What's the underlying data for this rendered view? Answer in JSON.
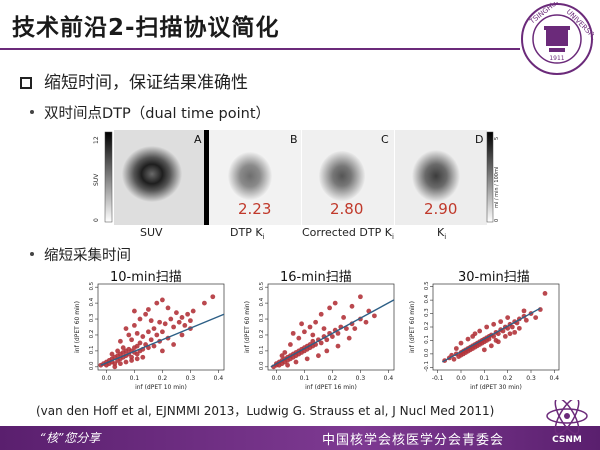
{
  "header": {
    "title": "技术前沿2-扫描协议简化",
    "logo": {
      "icon": "tsinghua-university-seal-icon",
      "text_top": "TSINGHUA",
      "text_right": "UNIVERSITY",
      "year": "1911",
      "accent": "#6b2a7a"
    }
  },
  "bullets": {
    "main": "缩短时间，保证结果准确性",
    "dtp": "双时间点DTP（dual time point）",
    "shorten": "缩短采集时间"
  },
  "pet_panel": {
    "letters": [
      "A",
      "B",
      "C",
      "D"
    ],
    "values": [
      "2.23",
      "2.80",
      "2.90"
    ],
    "value_color": "#c0392b",
    "suv_scale": {
      "label": "SUV",
      "max": "12",
      "min": "0"
    },
    "ki_scale": {
      "label": "ml / min / 100ml",
      "max": "5",
      "min": "0"
    },
    "captions": {
      "suv": "SUV",
      "dtp": "DTP K",
      "corr": "Corrected DTP K",
      "ki": "K",
      "sub": "i"
    }
  },
  "chart_data": [
    {
      "type": "scatter",
      "title": "10-min扫描",
      "xlabel": "inf (dPET 10 min)",
      "ylabel": "inf (dPET 60 min)",
      "x_ticks": [
        "0.0",
        "0.1",
        "0.2",
        "0.3",
        "0.4"
      ],
      "y_ticks": [
        "0.0",
        "0.1",
        "0.2",
        "0.3",
        "0.4",
        "0.5"
      ],
      "xlim": [
        -0.03,
        0.42
      ],
      "ylim": [
        -0.02,
        0.52
      ],
      "fit_line": {
        "x": [
          -0.02,
          0.42
        ],
        "y": [
          0.01,
          0.33
        ]
      },
      "points": [
        [
          -0.02,
          0.01
        ],
        [
          -0.01,
          0.02
        ],
        [
          0.0,
          0.03
        ],
        [
          0.0,
          0.01
        ],
        [
          0.01,
          0.04
        ],
        [
          0.01,
          0.02
        ],
        [
          0.02,
          0.05
        ],
        [
          0.02,
          0.03
        ],
        [
          0.03,
          0.02
        ],
        [
          0.03,
          0.06
        ],
        [
          0.04,
          0.04
        ],
        [
          0.04,
          0.07
        ],
        [
          0.05,
          0.05
        ],
        [
          0.05,
          0.08
        ],
        [
          0.06,
          0.06
        ],
        [
          0.06,
          0.09
        ],
        [
          0.07,
          0.07
        ],
        [
          0.07,
          0.1
        ],
        [
          0.08,
          0.08
        ],
        [
          0.08,
          0.11
        ],
        [
          0.09,
          0.1
        ],
        [
          0.09,
          0.06
        ],
        [
          0.1,
          0.12
        ],
        [
          0.1,
          0.09
        ],
        [
          0.11,
          0.13
        ],
        [
          0.11,
          0.08
        ],
        [
          0.12,
          0.1
        ],
        [
          0.12,
          0.15
        ],
        [
          0.13,
          0.11
        ],
        [
          0.13,
          0.19
        ],
        [
          0.14,
          0.14
        ],
        [
          0.15,
          0.12
        ],
        [
          0.15,
          0.22
        ],
        [
          0.16,
          0.17
        ],
        [
          0.17,
          0.13
        ],
        [
          0.17,
          0.24
        ],
        [
          0.18,
          0.2
        ],
        [
          0.19,
          0.16
        ],
        [
          0.19,
          0.28
        ],
        [
          0.2,
          0.22
        ],
        [
          0.21,
          0.27
        ],
        [
          0.22,
          0.18
        ],
        [
          0.23,
          0.3
        ],
        [
          0.24,
          0.25
        ],
        [
          0.25,
          0.34
        ],
        [
          0.26,
          0.28
        ],
        [
          0.27,
          0.31
        ],
        [
          0.28,
          0.26
        ],
        [
          0.29,
          0.33
        ],
        [
          0.3,
          0.29
        ],
        [
          0.31,
          0.35
        ],
        [
          0.08,
          0.2
        ],
        [
          0.1,
          0.26
        ],
        [
          0.12,
          0.3
        ],
        [
          0.05,
          0.16
        ],
        [
          0.15,
          0.36
        ],
        [
          0.18,
          0.4
        ],
        [
          0.14,
          0.33
        ],
        [
          0.2,
          0.42
        ],
        [
          0.22,
          0.37
        ],
        [
          0.38,
          0.44
        ],
        [
          0.35,
          0.4
        ],
        [
          0.1,
          0.35
        ],
        [
          0.07,
          0.24
        ],
        [
          0.16,
          0.29
        ],
        [
          0.13,
          0.06
        ],
        [
          0.2,
          0.1
        ],
        [
          0.24,
          0.14
        ],
        [
          0.09,
          0.17
        ],
        [
          0.11,
          0.21
        ],
        [
          0.06,
          0.12
        ],
        [
          0.04,
          0.1
        ],
        [
          0.02,
          0.08
        ],
        [
          0.03,
          0.0
        ],
        [
          0.05,
          0.02
        ],
        [
          0.07,
          0.03
        ],
        [
          0.09,
          0.04
        ],
        [
          0.11,
          0.05
        ],
        [
          0.27,
          0.2
        ],
        [
          0.3,
          0.24
        ]
      ]
    },
    {
      "type": "scatter",
      "title": "16-min扫描",
      "xlabel": "inf (dPET 16 min)",
      "ylabel": "inf (dPET 60 min)",
      "x_ticks": [
        "0.0",
        "0.1",
        "0.2",
        "0.3",
        "0.4"
      ],
      "y_ticks": [
        "0.0",
        "0.1",
        "0.2",
        "0.3",
        "0.4",
        "0.5"
      ],
      "xlim": [
        -0.03,
        0.42
      ],
      "ylim": [
        -0.02,
        0.52
      ],
      "fit_line": {
        "x": [
          -0.02,
          0.42
        ],
        "y": [
          0.0,
          0.42
        ]
      },
      "points": [
        [
          -0.01,
          0.0
        ],
        [
          0.0,
          0.01
        ],
        [
          0.0,
          0.02
        ],
        [
          0.01,
          0.01
        ],
        [
          0.01,
          0.03
        ],
        [
          0.02,
          0.02
        ],
        [
          0.02,
          0.04
        ],
        [
          0.03,
          0.03
        ],
        [
          0.03,
          0.05
        ],
        [
          0.04,
          0.04
        ],
        [
          0.04,
          0.06
        ],
        [
          0.05,
          0.05
        ],
        [
          0.05,
          0.07
        ],
        [
          0.06,
          0.06
        ],
        [
          0.06,
          0.08
        ],
        [
          0.07,
          0.07
        ],
        [
          0.07,
          0.09
        ],
        [
          0.08,
          0.08
        ],
        [
          0.08,
          0.1
        ],
        [
          0.09,
          0.09
        ],
        [
          0.09,
          0.11
        ],
        [
          0.1,
          0.1
        ],
        [
          0.1,
          0.12
        ],
        [
          0.11,
          0.11
        ],
        [
          0.11,
          0.13
        ],
        [
          0.12,
          0.12
        ],
        [
          0.12,
          0.14
        ],
        [
          0.13,
          0.13
        ],
        [
          0.13,
          0.16
        ],
        [
          0.14,
          0.14
        ],
        [
          0.15,
          0.17
        ],
        [
          0.16,
          0.15
        ],
        [
          0.17,
          0.19
        ],
        [
          0.18,
          0.17
        ],
        [
          0.19,
          0.21
        ],
        [
          0.2,
          0.19
        ],
        [
          0.21,
          0.23
        ],
        [
          0.22,
          0.21
        ],
        [
          0.23,
          0.25
        ],
        [
          0.25,
          0.24
        ],
        [
          0.27,
          0.27
        ],
        [
          0.28,
          0.24
        ],
        [
          0.3,
          0.3
        ],
        [
          0.32,
          0.28
        ],
        [
          0.05,
          0.14
        ],
        [
          0.08,
          0.18
        ],
        [
          0.1,
          0.22
        ],
        [
          0.12,
          0.25
        ],
        [
          0.14,
          0.28
        ],
        [
          0.16,
          0.33
        ],
        [
          0.19,
          0.37
        ],
        [
          0.21,
          0.4
        ],
        [
          0.06,
          0.21
        ],
        [
          0.09,
          0.27
        ],
        [
          0.3,
          0.44
        ],
        [
          0.27,
          0.38
        ],
        [
          0.33,
          0.35
        ],
        [
          0.15,
          0.07
        ],
        [
          0.18,
          0.1
        ],
        [
          0.22,
          0.13
        ],
        [
          0.11,
          0.05
        ],
        [
          0.07,
          0.03
        ],
        [
          0.04,
          0.01
        ],
        [
          0.13,
          0.2
        ],
        [
          0.17,
          0.24
        ],
        [
          0.24,
          0.31
        ],
        [
          0.02,
          0.07
        ],
        [
          0.03,
          0.09
        ],
        [
          0.35,
          0.32
        ],
        [
          0.26,
          0.18
        ]
      ]
    },
    {
      "type": "scatter",
      "title": "30-min扫描",
      "xlabel": "inf (dPET 30 min)",
      "ylabel": "inf (dPET 60 min)",
      "x_ticks": [
        "-0.1",
        "0.0",
        "0.1",
        "0.2",
        "0.3",
        "0.4"
      ],
      "y_ticks": [
        "-0.1",
        "0.0",
        "0.1",
        "0.2",
        "0.3",
        "0.4",
        "0.5"
      ],
      "xlim": [
        -0.12,
        0.42
      ],
      "ylim": [
        -0.12,
        0.52
      ],
      "fit_line": {
        "x": [
          -0.08,
          0.34
        ],
        "y": [
          -0.06,
          0.34
        ]
      },
      "points": [
        [
          -0.07,
          -0.05
        ],
        [
          -0.05,
          -0.03
        ],
        [
          -0.04,
          -0.01
        ],
        [
          -0.03,
          -0.04
        ],
        [
          -0.02,
          0.0
        ],
        [
          -0.01,
          -0.02
        ],
        [
          0.0,
          0.01
        ],
        [
          0.0,
          -0.01
        ],
        [
          0.01,
          0.02
        ],
        [
          0.01,
          0.0
        ],
        [
          0.02,
          0.03
        ],
        [
          0.02,
          0.01
        ],
        [
          0.03,
          0.04
        ],
        [
          0.03,
          0.02
        ],
        [
          0.04,
          0.05
        ],
        [
          0.04,
          0.03
        ],
        [
          0.05,
          0.06
        ],
        [
          0.05,
          0.04
        ],
        [
          0.06,
          0.07
        ],
        [
          0.06,
          0.05
        ],
        [
          0.07,
          0.08
        ],
        [
          0.07,
          0.06
        ],
        [
          0.08,
          0.09
        ],
        [
          0.08,
          0.07
        ],
        [
          0.09,
          0.1
        ],
        [
          0.09,
          0.08
        ],
        [
          0.1,
          0.11
        ],
        [
          0.1,
          0.09
        ],
        [
          0.11,
          0.12
        ],
        [
          0.11,
          0.1
        ],
        [
          0.12,
          0.13
        ],
        [
          0.12,
          0.11
        ],
        [
          0.13,
          0.14
        ],
        [
          0.14,
          0.13
        ],
        [
          0.15,
          0.16
        ],
        [
          0.16,
          0.15
        ],
        [
          0.17,
          0.18
        ],
        [
          0.18,
          0.17
        ],
        [
          0.19,
          0.2
        ],
        [
          0.2,
          0.19
        ],
        [
          0.21,
          0.22
        ],
        [
          0.22,
          0.2
        ],
        [
          0.23,
          0.24
        ],
        [
          0.24,
          0.23
        ],
        [
          0.25,
          0.26
        ],
        [
          0.27,
          0.28
        ],
        [
          0.28,
          0.25
        ],
        [
          0.3,
          0.3
        ],
        [
          0.05,
          0.13
        ],
        [
          0.08,
          0.17
        ],
        [
          0.11,
          0.2
        ],
        [
          0.14,
          0.22
        ],
        [
          0.03,
          0.11
        ],
        [
          0.06,
          0.15
        ],
        [
          0.13,
          0.06
        ],
        [
          0.16,
          0.09
        ],
        [
          0.1,
          0.03
        ],
        [
          0.19,
          0.13
        ],
        [
          0.23,
          0.16
        ],
        [
          0.36,
          0.45
        ],
        [
          0.34,
          0.33
        ],
        [
          0.32,
          0.27
        ],
        [
          0.27,
          0.32
        ],
        [
          0.2,
          0.27
        ],
        [
          0.17,
          0.24
        ],
        [
          0.0,
          0.08
        ],
        [
          -0.02,
          0.04
        ],
        [
          0.15,
          0.1
        ],
        [
          0.21,
          0.15
        ],
        [
          0.25,
          0.19
        ]
      ]
    }
  ],
  "reference": "(van den Hoff et al, EJNMMI 2013，Ludwig G. Strauss et al, J Nucl Med 2011)",
  "footer": {
    "left": "“核”您分享",
    "right": "中国核学会核医学分会青委会",
    "badge": "CSNM",
    "badge_icon": "csnm-atom-logo-icon",
    "color": "#6b2a7a"
  },
  "colors": {
    "point": "#b3343b",
    "fit_line": "#2d5f86",
    "axis": "#333333"
  }
}
